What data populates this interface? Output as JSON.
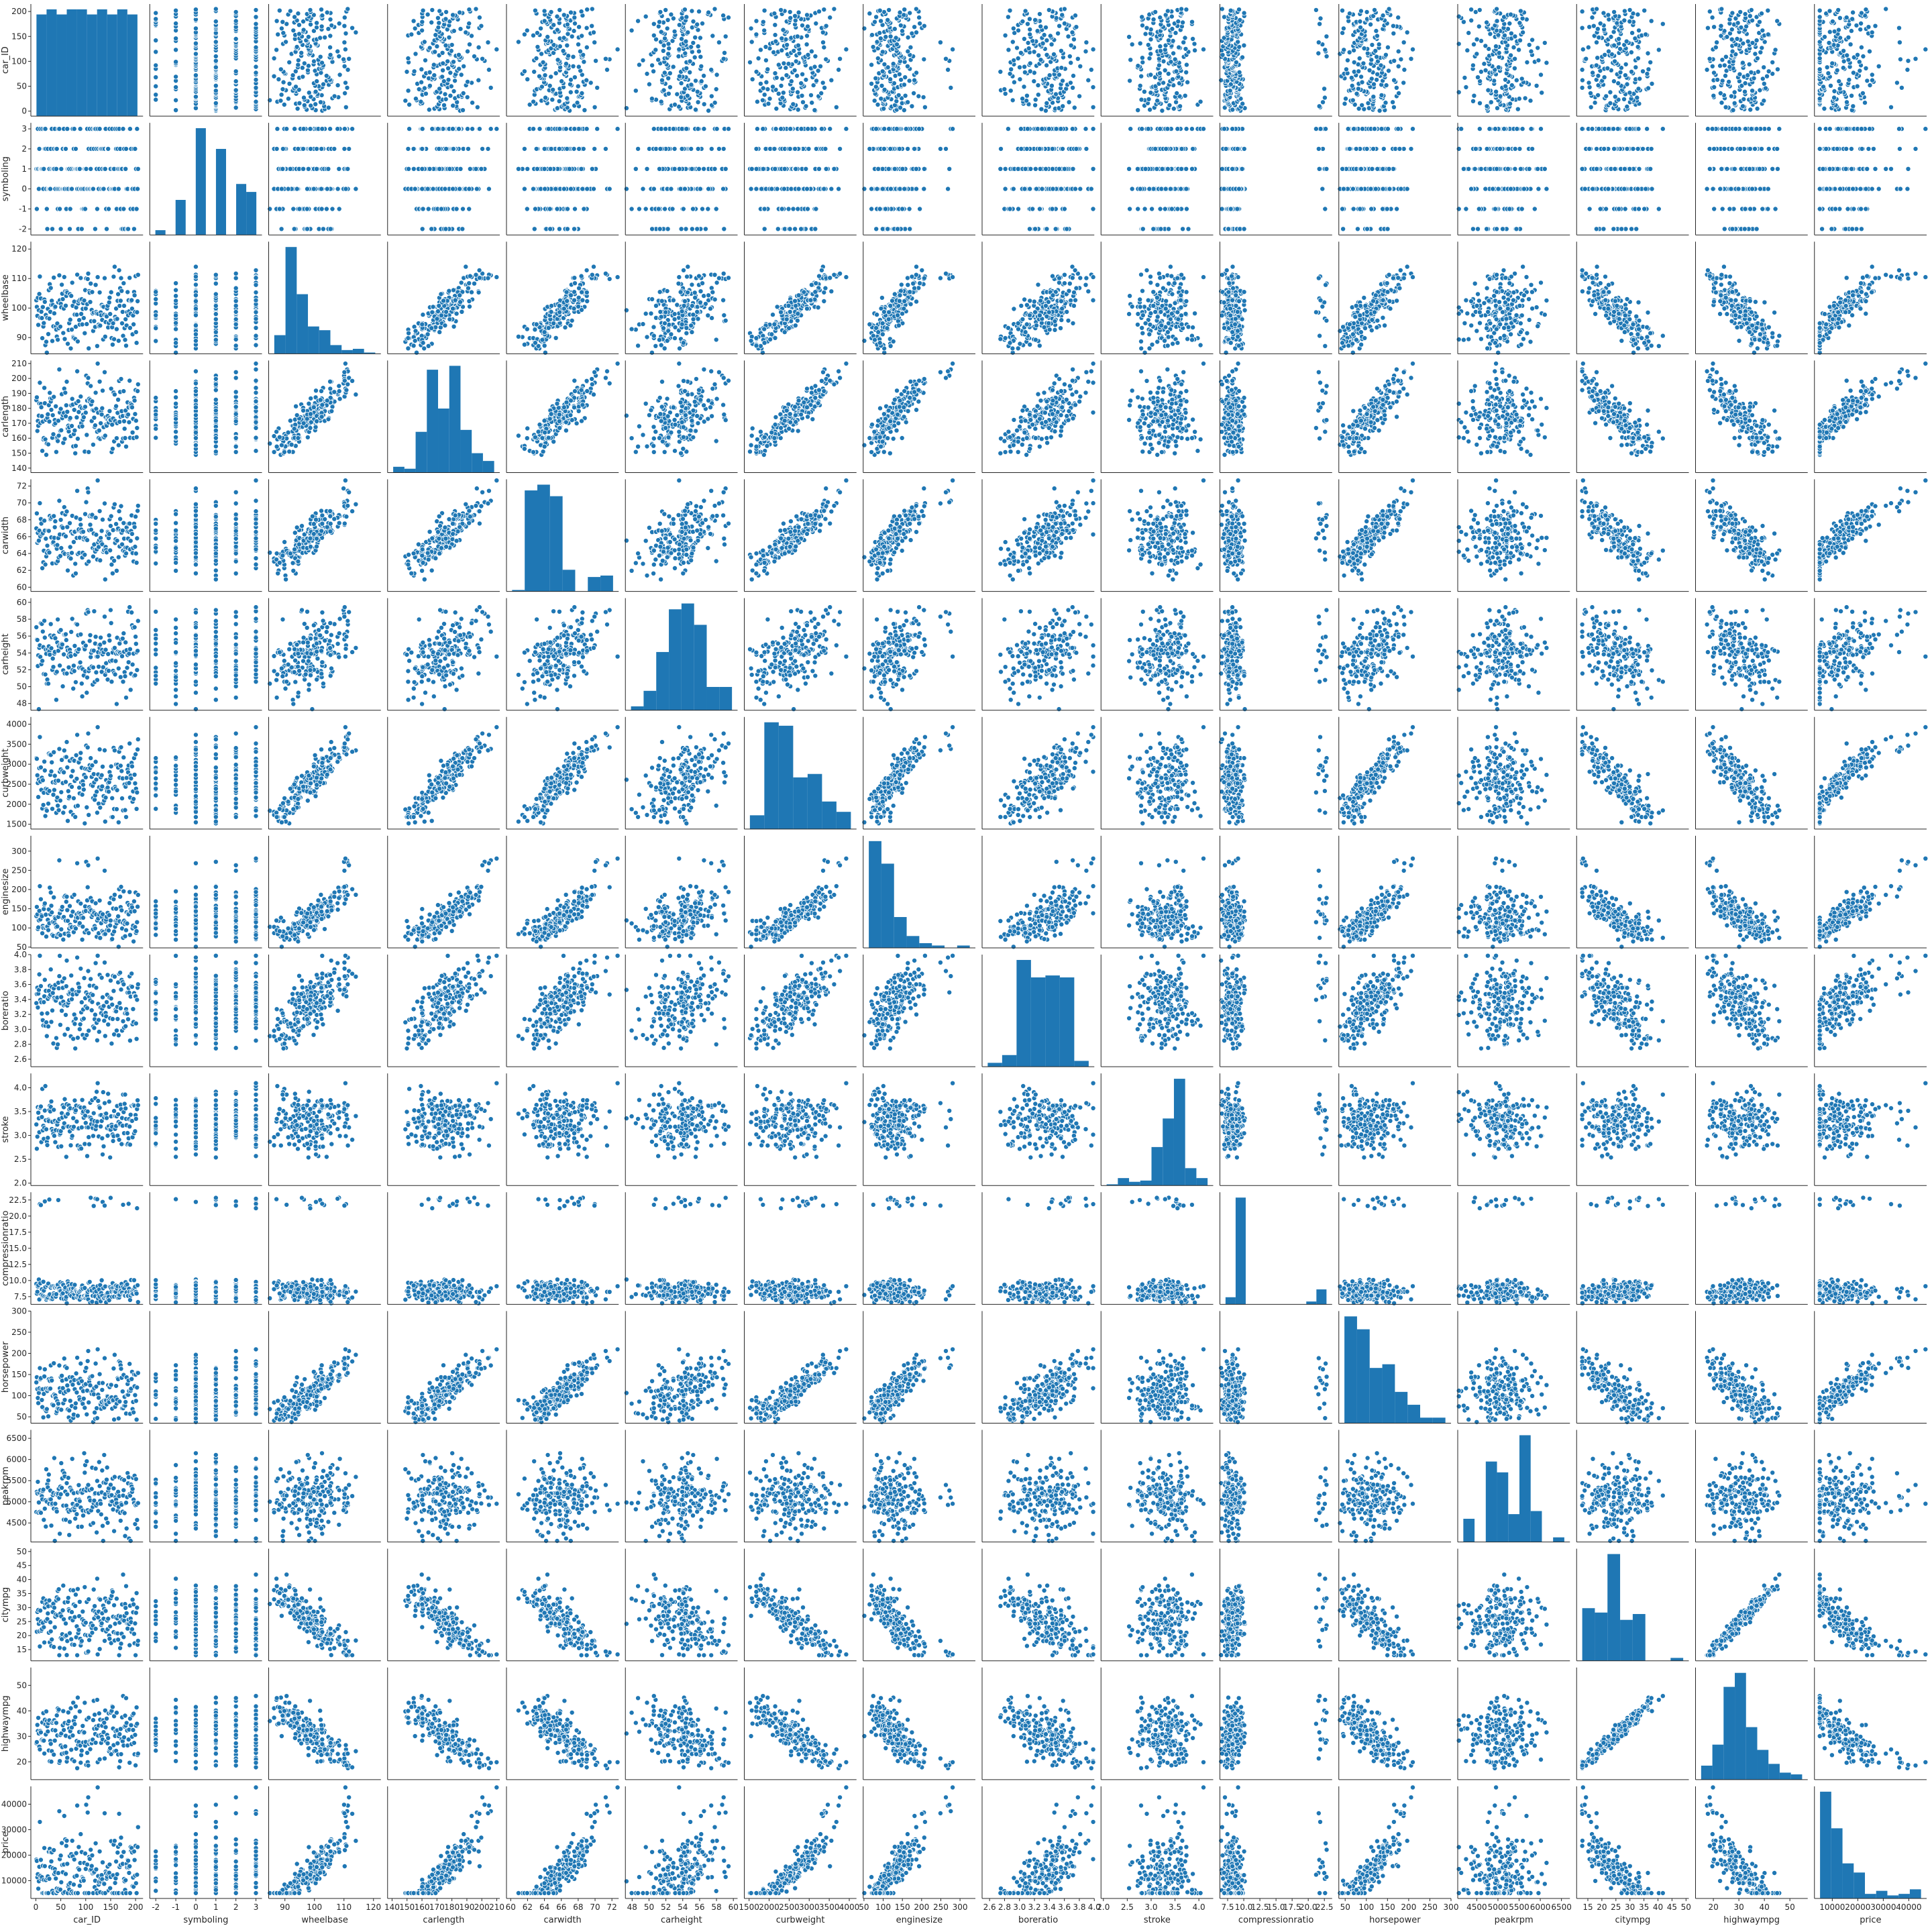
{
  "chart_data": {
    "type": "scatter",
    "kind": "pairplot",
    "color": "#1f77b4",
    "variables": [
      {
        "name": "car_ID",
        "label": "car_ID",
        "xlabel": "car_ID",
        "lim": [
          -10,
          215
        ],
        "ticks": [
          0,
          50,
          100,
          150,
          200
        ]
      },
      {
        "name": "symboling",
        "label": "symboling",
        "xlabel": "symboling",
        "lim": [
          -2.3,
          3.3
        ],
        "ticks": [
          -2,
          -1,
          0,
          1,
          2,
          3
        ]
      },
      {
        "name": "wheelbase",
        "label": "wheelbase",
        "xlabel": "wheelbase",
        "lim": [
          84.5,
          122.5
        ],
        "ticks": [
          90,
          100,
          110,
          120
        ]
      },
      {
        "name": "carlength",
        "label": "carlength",
        "xlabel": "carlength",
        "lim": [
          137,
          212
        ],
        "ticks": [
          140,
          150,
          160,
          170,
          180,
          190,
          200,
          210
        ]
      },
      {
        "name": "carwidth",
        "label": "carwidth",
        "xlabel": "carwidth",
        "lim": [
          59.5,
          72.8
        ],
        "ticks": [
          60,
          62,
          64,
          66,
          68,
          70,
          72
        ]
      },
      {
        "name": "carheight",
        "label": "carheight",
        "xlabel": "carheight",
        "lim": [
          47.2,
          60.5
        ],
        "ticks": [
          48,
          50,
          52,
          54,
          56,
          58,
          60
        ]
      },
      {
        "name": "curbweight",
        "label": "curbweight",
        "xlabel": "curbweight",
        "lim": [
          1380,
          4180
        ],
        "ticks": [
          1500,
          2000,
          2500,
          3000,
          3500,
          4000
        ]
      },
      {
        "name": "enginesize",
        "label": "enginesize",
        "xlabel": "enginesize",
        "lim": [
          48,
          340
        ],
        "ticks": [
          50,
          100,
          150,
          200,
          250,
          300
        ]
      },
      {
        "name": "boreratio",
        "label": "boreratio",
        "xlabel": "boreratio",
        "lim": [
          2.5,
          4.0
        ],
        "ticks": [
          2.6,
          2.8,
          3.0,
          3.2,
          3.4,
          3.6,
          3.8,
          4.0
        ]
      },
      {
        "name": "stroke",
        "label": "stroke",
        "xlabel": "stroke",
        "lim": [
          1.95,
          4.3
        ],
        "ticks": [
          2.0,
          2.5,
          3.0,
          3.5,
          4.0
        ]
      },
      {
        "name": "compressionratio",
        "label": "compressionratio",
        "xlabel": "compressionratio",
        "lim": [
          6.3,
          23.7
        ],
        "ticks": [
          7.5,
          10.0,
          12.5,
          15.0,
          17.5,
          20.0,
          22.5
        ]
      },
      {
        "name": "horsepower",
        "label": "horsepower",
        "xlabel": "horsepower",
        "lim": [
          35,
          300
        ],
        "ticks": [
          50,
          100,
          150,
          200,
          250,
          300
        ]
      },
      {
        "name": "peakrpm",
        "label": "peakrpm",
        "xlabel": "peakrpm",
        "lim": [
          4050,
          6700
        ],
        "ticks": [
          4500,
          5000,
          5500,
          6000,
          6500
        ]
      },
      {
        "name": "citympg",
        "label": "citympg",
        "xlabel": "citympg",
        "lim": [
          11,
          51
        ],
        "ticks": [
          15,
          20,
          25,
          30,
          35,
          40,
          45,
          50
        ]
      },
      {
        "name": "highwaympg",
        "label": "highwaympg",
        "xlabel": "highwaympg",
        "lim": [
          13,
          57
        ],
        "ticks": [
          20,
          30,
          40,
          50
        ]
      },
      {
        "name": "price",
        "label": "price",
        "xlabel": "price",
        "lim": [
          3000,
          47000
        ],
        "ticks": [
          10000,
          20000,
          30000,
          40000
        ]
      }
    ],
    "histograms": [
      [
        20,
        21,
        20,
        21,
        21,
        20,
        21,
        20,
        21,
        20
      ],
      [
        3,
        0,
        22,
        0,
        67,
        0,
        54,
        0,
        32,
        27
      ],
      [
        15,
        86,
        48,
        22,
        19,
        7,
        3,
        4,
        1
      ],
      [
        3,
        2,
        21,
        53,
        33,
        55,
        22,
        10,
        6
      ],
      [
        1,
        70,
        74,
        66,
        15,
        0,
        10,
        11
      ],
      [
        2,
        10,
        30,
        52,
        55,
        44,
        12,
        12
      ],
      [
        8,
        62,
        60,
        30,
        32,
        16,
        10
      ],
      [
        90,
        71,
        26,
        10,
        4,
        2,
        0,
        2
      ],
      [
        2,
        6,
        55,
        46,
        47,
        46,
        3
      ],
      [
        1,
        6,
        3,
        4,
        31,
        54,
        86,
        14,
        6
      ],
      [
        10,
        150,
        0,
        0,
        0,
        0,
        0,
        0,
        4,
        21
      ],
      [
        58,
        51,
        30,
        32,
        17,
        10,
        3,
        3
      ],
      [
        15,
        0,
        52,
        45,
        18,
        69,
        20,
        0,
        3
      ],
      [
        36,
        33,
        73,
        28,
        32,
        0,
        0,
        2
      ],
      [
        8,
        20,
        53,
        61,
        30,
        17,
        9,
        4,
        3
      ],
      [
        70,
        46,
        23,
        17,
        3,
        5,
        2,
        3,
        6
      ]
    ]
  }
}
